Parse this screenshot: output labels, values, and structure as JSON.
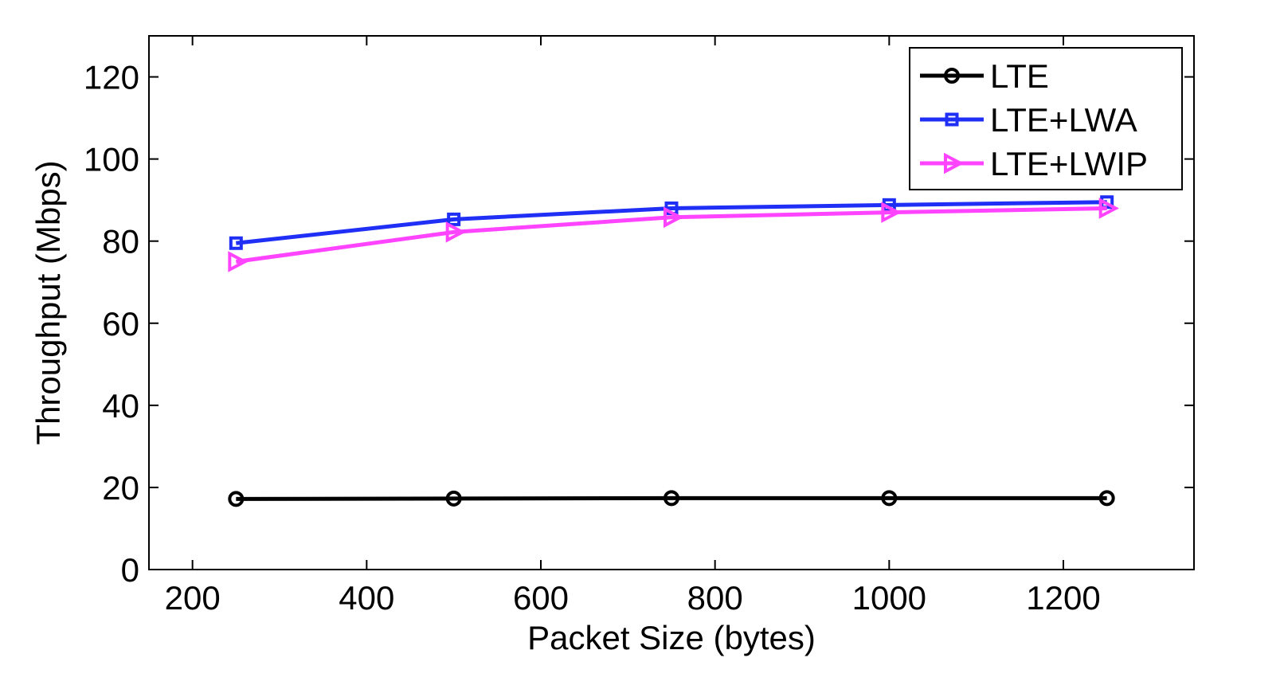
{
  "chart_data": {
    "type": "line",
    "title": "",
    "xlabel": "Packet Size (bytes)",
    "ylabel": "Throughput (Mbps)",
    "xlim": [
      150,
      1350
    ],
    "ylim": [
      0,
      130
    ],
    "xticks": [
      200,
      400,
      600,
      800,
      1000,
      1200
    ],
    "yticks": [
      0,
      20,
      40,
      60,
      80,
      100,
      120
    ],
    "xtick_labels": [
      "200",
      "400",
      "600",
      "800",
      "1000",
      "1200"
    ],
    "ytick_labels": [
      "0",
      "20",
      "40",
      "60",
      "80",
      "100",
      "120"
    ],
    "grid": false,
    "legend_position": "top-right",
    "x": [
      250,
      500,
      750,
      1000,
      1250
    ],
    "series": [
      {
        "name": "LTE",
        "values": [
          17.2,
          17.3,
          17.4,
          17.4,
          17.4
        ],
        "color": "#000000",
        "marker": "circle"
      },
      {
        "name": "LTE+LWA",
        "values": [
          79.5,
          85.3,
          88.0,
          88.8,
          89.5
        ],
        "color": "#1f2ff5",
        "marker": "square"
      },
      {
        "name": "LTE+LWIP",
        "values": [
          75.0,
          82.2,
          85.8,
          87.0,
          88.0
        ],
        "color": "#ff44ff",
        "marker": "triangle-right"
      }
    ]
  }
}
